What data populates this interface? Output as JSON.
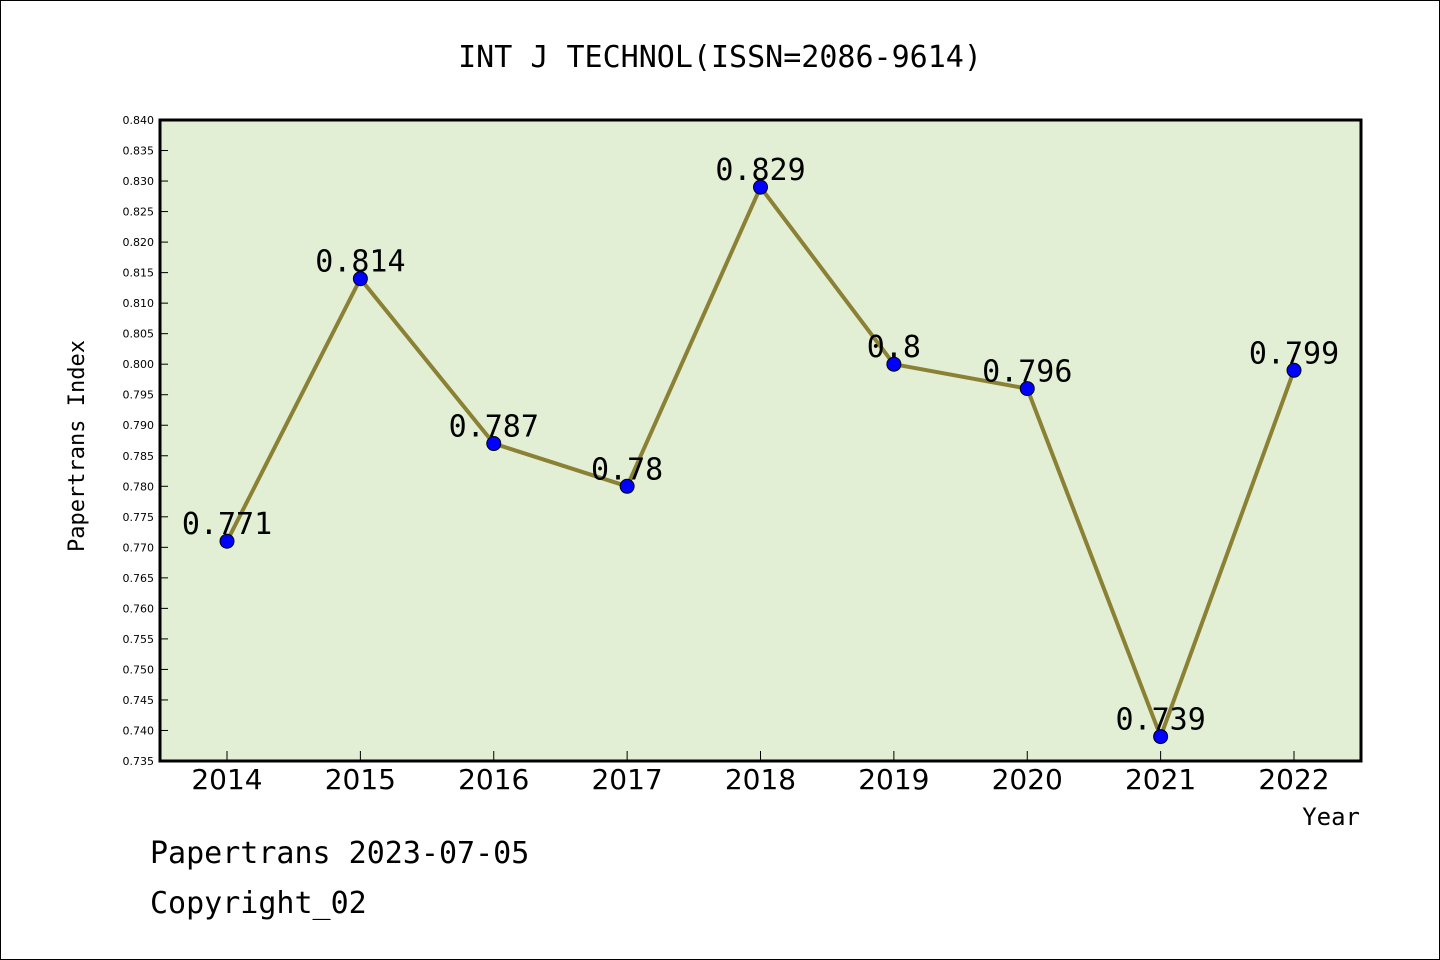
{
  "chart_data": {
    "type": "line",
    "title": "INT J TECHNOL(ISSN=2086-9614)",
    "xlabel": "Year",
    "ylabel": "Papertrans Index",
    "categories": [
      "2014",
      "2015",
      "2016",
      "2017",
      "2018",
      "2019",
      "2020",
      "2021",
      "2022"
    ],
    "series": [
      {
        "values": [
          0.771,
          0.814,
          0.787,
          0.78,
          0.829,
          0.8,
          0.796,
          0.739,
          0.799
        ],
        "data_labels": [
          "0.771",
          "0.814",
          "0.787",
          "0.78",
          "0.829",
          "0.8",
          "0.796",
          "0.739",
          "0.799"
        ]
      }
    ],
    "ylim": [
      0.735,
      0.84
    ],
    "ytick_step": 0.005,
    "grid": false,
    "colors": {
      "plot_background": "#e2efd4",
      "line": "#8b8135",
      "marker": "#0000ff"
    }
  },
  "footer": {
    "date_line": "Papertrans 2023-07-05",
    "copyright_line": "Copyright_02"
  }
}
